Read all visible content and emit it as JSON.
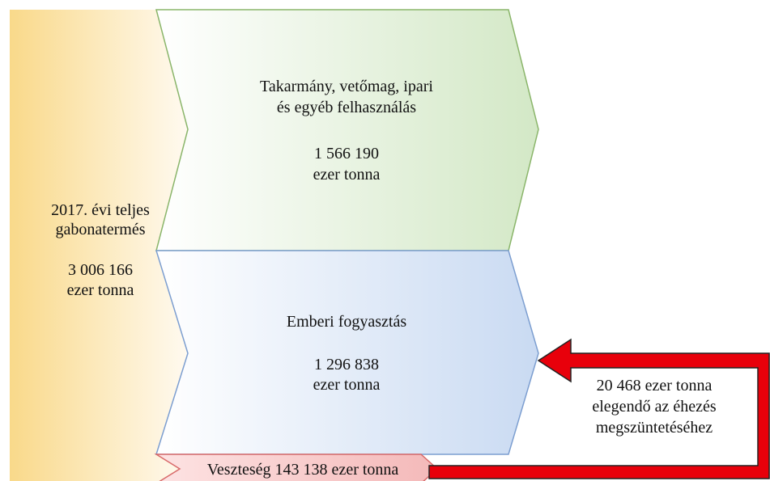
{
  "total": {
    "lines": [
      "2017. évi teljes",
      "gabonatermés",
      "3 006 166",
      "ezer tonna"
    ]
  },
  "feed": {
    "lines": [
      "Takarmány, vetőmag, ipari",
      "és egyéb felhasználás",
      "1 566 190",
      "ezer tonna"
    ]
  },
  "human": {
    "lines": [
      "Emberi fogyasztás",
      "1 296 838",
      "ezer tonna"
    ]
  },
  "loss": {
    "label": "Veszteség 143 138 ezer tonna"
  },
  "note": {
    "lines": [
      "20 468 ezer tonna",
      "elegendő az éhezés",
      "megszüntetéséhez"
    ]
  }
}
